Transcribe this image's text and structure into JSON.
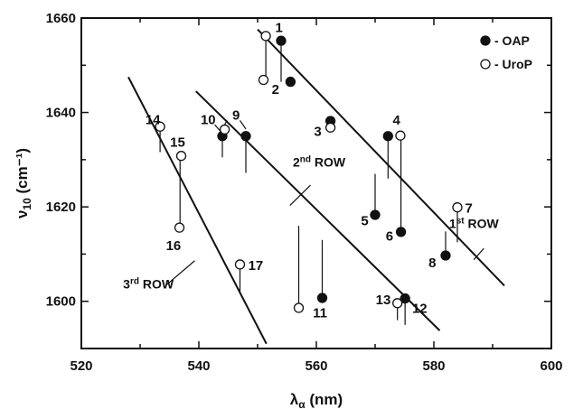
{
  "chart_data": {
    "type": "scatter",
    "xlabel": "λα (nm)",
    "ylabel": "ν10 (cm⁻¹)",
    "xlim": [
      520,
      600
    ],
    "ylim": [
      1590,
      1660
    ],
    "xticks": [
      520,
      540,
      560,
      580,
      600
    ],
    "yticks": [
      1600,
      1620,
      1640,
      1660
    ],
    "grid": false,
    "legend_position": "top-right",
    "legend": [
      {
        "marker": "filled-circle",
        "label": "- OAP"
      },
      {
        "marker": "open-circle",
        "label": "- UroP"
      }
    ],
    "series": [
      {
        "name": "OAP",
        "marker": "filled",
        "points": [
          {
            "id": "1",
            "x": 554.0,
            "y": 1655.2
          },
          {
            "id": "2",
            "x": 555.6,
            "y": 1646.5
          },
          {
            "id": "3",
            "x": 562.4,
            "y": 1638.2
          },
          {
            "id": "4",
            "x": 572.2,
            "y": 1635.0
          },
          {
            "id": "5",
            "x": 570.0,
            "y": 1618.3
          },
          {
            "id": "6",
            "x": 574.4,
            "y": 1614.7
          },
          {
            "id": "8",
            "x": 582.0,
            "y": 1609.7
          },
          {
            "id": "9",
            "x": 548.0,
            "y": 1635.0
          },
          {
            "id": "10",
            "x": 544.0,
            "y": 1635.0
          },
          {
            "id": "11",
            "x": 561.0,
            "y": 1600.7
          },
          {
            "id": "12",
            "x": 575.1,
            "y": 1600.6
          }
        ]
      },
      {
        "name": "UroP",
        "marker": "open",
        "points": [
          {
            "id": "1",
            "x": 551.4,
            "y": 1656.2
          },
          {
            "id": "2",
            "x": 551.0,
            "y": 1646.9
          },
          {
            "id": "3",
            "x": 562.4,
            "y": 1636.8
          },
          {
            "id": "4",
            "x": 574.3,
            "y": 1635.1
          },
          {
            "id": "7",
            "x": 584.0,
            "y": 1619.9
          },
          {
            "id": "9",
            "x": 544.4,
            "y": 1636.4
          },
          {
            "id": "14",
            "x": 533.4,
            "y": 1637.0
          },
          {
            "id": "15",
            "x": 537.0,
            "y": 1630.8
          },
          {
            "id": "16",
            "x": 536.7,
            "y": 1615.6
          },
          {
            "id": "17",
            "x": 547.0,
            "y": 1607.8
          },
          {
            "id": "11",
            "x": 557.0,
            "y": 1598.6
          },
          {
            "id": "13",
            "x": 573.8,
            "y": 1599.6
          }
        ]
      }
    ],
    "rows": [
      {
        "label": "1st ROW",
        "x1": 550.0,
        "y1": 1657.6,
        "x2": 592.0,
        "y2": 1603.3
      },
      {
        "label": "2nd ROW",
        "x1": 539.5,
        "y1": 1644.5,
        "x2": 581.0,
        "y2": 1593.8
      },
      {
        "label": "3rd ROW",
        "x1": 528.0,
        "y1": 1647.5,
        "x2": 551.5,
        "y2": 1591.0
      }
    ],
    "ordinal_sup": {
      "1st": "st",
      "2nd": "nd",
      "3rd": "rd"
    },
    "title": ""
  }
}
